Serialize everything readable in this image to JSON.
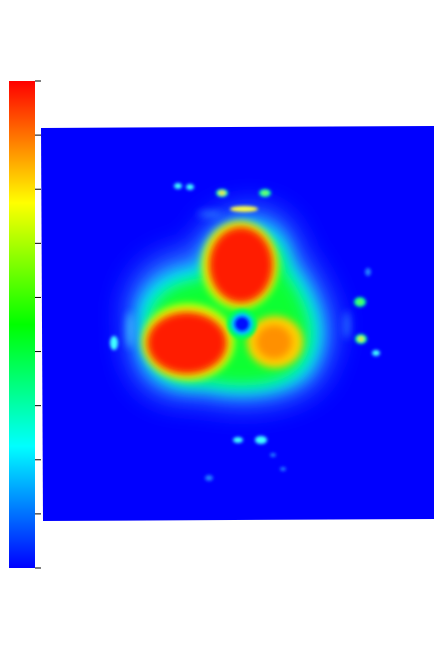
{
  "figure": {
    "type": "density-heatmap",
    "colormap": [
      "#0000ff",
      "#00ffff",
      "#00ff00",
      "#ffff00",
      "#ff0000"
    ],
    "colorbar": {
      "orientation": "vertical",
      "tick_count": 10,
      "labels": []
    },
    "background_color": "#0000ff",
    "features": [
      {
        "name": "main-lobe-top",
        "level": 1.0
      },
      {
        "name": "main-lobe-left",
        "level": 1.0
      },
      {
        "name": "secondary-lobe-right",
        "level": 0.8
      },
      {
        "name": "central-hole",
        "level": 0.0
      },
      {
        "name": "outer-halo",
        "level": 0.45
      },
      {
        "name": "satellite-spots",
        "level": 0.55
      }
    ]
  }
}
